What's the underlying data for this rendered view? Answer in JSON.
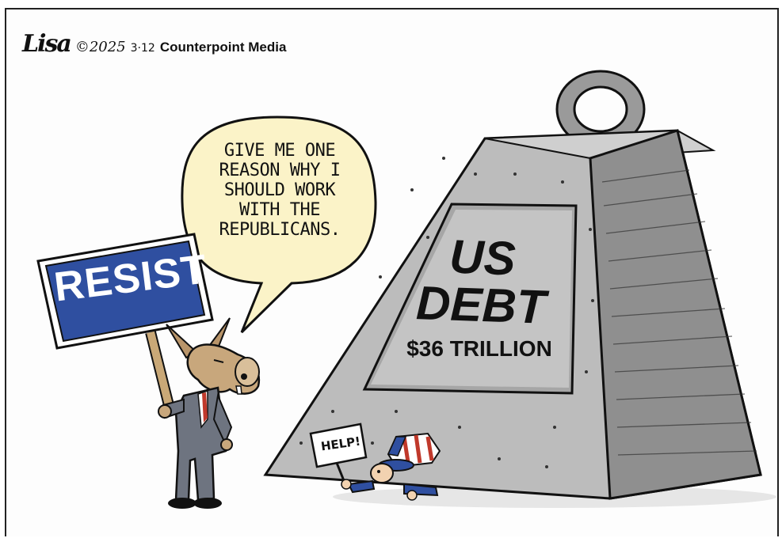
{
  "credit": {
    "signature": "Lisa",
    "year": "©2025",
    "date": "3·12",
    "publisher": "Counterpoint Media"
  },
  "speech_bubble": {
    "lines": [
      "GIVE ME ONE",
      "REASON WHY I",
      "SHOULD WORK",
      "WITH THE",
      "REPUBLICANS."
    ]
  },
  "sign": {
    "label": "RESIST"
  },
  "weight": {
    "title_line1": "US",
    "title_line2": "DEBT",
    "amount": "$36 TRILLION"
  },
  "help_sign": {
    "label": "HELP!"
  },
  "colors": {
    "sign_blue": "#2f4fa0",
    "bubble_fill": "#fbf3c8",
    "weight_gray": "#b8b8b8",
    "weight_dark": "#8f8f8f",
    "donkey_brown": "#b9956a",
    "suit_gray": "#6e7480"
  }
}
